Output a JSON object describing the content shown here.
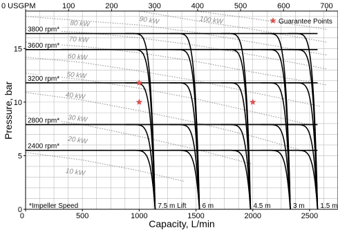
{
  "chart_data": {
    "type": "line",
    "xlabel": "Capacity, L/min",
    "ylabel": "Pressure, bar",
    "xlim": [
      0,
      2750
    ],
    "ylim": [
      0,
      18.5
    ],
    "x_ticks": [
      0,
      500,
      1000,
      1500,
      2000,
      2500
    ],
    "y_ticks": [
      0,
      5,
      10,
      15
    ],
    "secondary_x_axis": {
      "unit_label": "0 USGPM",
      "ticks": [
        0,
        100,
        200,
        300,
        400,
        500,
        600,
        700
      ],
      "tick_labels": [
        "0 USGPM",
        "100",
        "200",
        "300",
        "400",
        "500",
        "600",
        "700"
      ],
      "factor_lpm_per_usgpm": 3.785
    },
    "grid": true,
    "speeds": [
      {
        "label": "2400 rpm*",
        "pressure_bar": 5.5
      },
      {
        "label": "2800 rpm*",
        "pressure_bar": 7.9
      },
      {
        "label": "3200 rpm*",
        "pressure_bar": 11.8
      },
      {
        "label": "3600 rpm*",
        "pressure_bar": 14.9
      },
      {
        "label": "3800 rpm*",
        "pressure_bar": 16.4
      }
    ],
    "lifts": [
      {
        "label": "7.5 m Lift",
        "max_capacity_lpm": 1140
      },
      {
        "label": "6 m",
        "max_capacity_lpm": 1530
      },
      {
        "label": "4.5 m",
        "max_capacity_lpm": 1980
      },
      {
        "label": "3 m",
        "max_capacity_lpm": 2330
      },
      {
        "label": "1.5 m",
        "max_capacity_lpm": 2570
      }
    ],
    "power_curves": [
      {
        "label": "10 kW",
        "points": [
          [
            0,
            5.3
          ],
          [
            500,
            4.6
          ],
          [
            1000,
            3.6
          ],
          [
            1400,
            2.6
          ]
        ],
        "label_at": [
          350,
          3.4
        ]
      },
      {
        "label": "20 kW",
        "points": [
          [
            0,
            8.7
          ],
          [
            500,
            7.9
          ],
          [
            1000,
            6.8
          ],
          [
            1500,
            5.6
          ],
          [
            2000,
            4.2
          ]
        ],
        "label_at": [
          370,
          6.4
        ]
      },
      {
        "label": "30 kW",
        "points": [
          [
            0,
            10.9
          ],
          [
            500,
            10.2
          ],
          [
            1000,
            9.2
          ],
          [
            1500,
            8.1
          ],
          [
            2000,
            6.8
          ],
          [
            2400,
            5.6
          ]
        ],
        "label_at": [
          370,
          8.4
        ]
      },
      {
        "label": "40 kW",
        "points": [
          [
            0,
            12.7
          ],
          [
            500,
            12.1
          ],
          [
            1000,
            11.3
          ],
          [
            1500,
            10.3
          ],
          [
            2000,
            9.1
          ],
          [
            2500,
            7.9
          ]
        ],
        "label_at": [
          350,
          10.5
        ]
      },
      {
        "label": "50 kW",
        "points": [
          [
            0,
            14.2
          ],
          [
            500,
            13.7
          ],
          [
            1000,
            12.9
          ],
          [
            1500,
            12.0
          ],
          [
            2000,
            10.9
          ],
          [
            2600,
            9.6
          ]
        ],
        "label_at": [
          360,
          12.4
        ]
      },
      {
        "label": "60 kW",
        "points": [
          [
            0,
            15.6
          ],
          [
            500,
            15.2
          ],
          [
            1000,
            14.6
          ],
          [
            1500,
            13.8
          ],
          [
            2000,
            12.8
          ],
          [
            2650,
            11.6
          ]
        ],
        "label_at": [
          370,
          14.1
        ]
      },
      {
        "label": "70 kW",
        "points": [
          [
            0,
            16.8
          ],
          [
            500,
            16.5
          ],
          [
            1000,
            16.0
          ],
          [
            1500,
            15.3
          ],
          [
            2000,
            14.4
          ],
          [
            2650,
            13.1
          ]
        ],
        "label_at": [
          380,
          15.7
        ]
      },
      {
        "label": "80 kW",
        "points": [
          [
            0,
            18.0
          ],
          [
            500,
            17.6
          ],
          [
            1000,
            17.2
          ],
          [
            1500,
            16.5
          ],
          [
            2000,
            15.6
          ],
          [
            2650,
            14.4
          ]
        ],
        "label_at": [
          390,
          17.2
        ]
      },
      {
        "label": "90 kW",
        "points": [
          [
            1000,
            18.5
          ],
          [
            1500,
            17.6
          ],
          [
            2000,
            16.8
          ],
          [
            2650,
            15.6
          ]
        ],
        "label_at": [
          1000,
          17.6
        ]
      },
      {
        "label": "100 kW",
        "points": [
          [
            1500,
            18.5
          ],
          [
            2000,
            17.8
          ],
          [
            2650,
            16.8
          ]
        ],
        "label_at": [
          1530,
          17.6
        ]
      }
    ],
    "guarantee_points": [
      {
        "x": 1000,
        "y": 11.8
      },
      {
        "x": 1000,
        "y": 10.0
      },
      {
        "x": 2000,
        "y": 10.0
      }
    ],
    "legend": {
      "label": "Guarantee Points",
      "placement": "top-right"
    },
    "annotation": "*Impeller Speed",
    "colors": {
      "curve": "#000000",
      "power_curve": "#9a9a9a",
      "grid": "#b9b9b9",
      "guarantee_star": "#d9534f"
    }
  }
}
